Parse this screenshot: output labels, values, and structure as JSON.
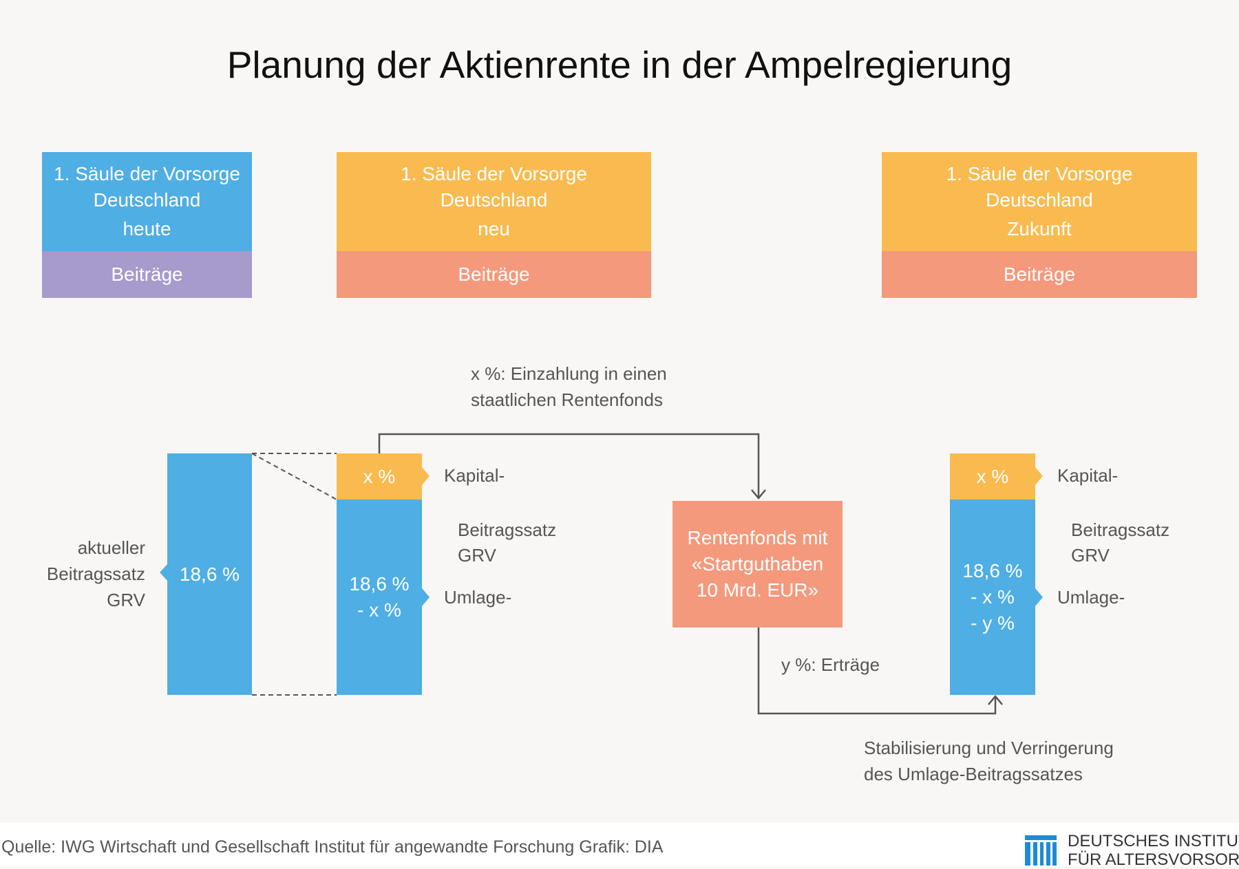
{
  "title": "Planung der Aktienrente in der Ampelregierung",
  "cards": [
    {
      "line1": "1. Säule der Vorsorge",
      "line2": "Deutschland",
      "line3": "heute",
      "bottom": "Beiträge"
    },
    {
      "line1": "1. Säule der Vorsorge",
      "line2": "Deutschland",
      "line3": "neu",
      "bottom": "Beiträge"
    },
    {
      "line1": "1. Säule der Vorsorge",
      "line2": "Deutschland",
      "line3": "Zukunft",
      "bottom": "Beiträge"
    }
  ],
  "left": {
    "label_line1": "aktueller",
    "label_line2": "Beitragssatz",
    "label_line3": "GRV",
    "bar_value": "18,6 %"
  },
  "middle": {
    "top_value": "x %",
    "bottom_line1": "18,6 %",
    "bottom_line2": "- x %",
    "kapital": "Kapital-",
    "beitragssatz": "Beitragssatz",
    "grv": "GRV",
    "umlage": "Umlage-"
  },
  "flow": {
    "top_label_line1": "x %: Einzahlung in einen",
    "top_label_line2": "staatlichen Rentenfonds",
    "fund_line1": "Rentenfonds mit",
    "fund_line2": "«Startguthaben",
    "fund_line3": "10 Mrd. EUR»",
    "returns_label": "y %: Erträge",
    "bottom_label_line1": "Stabilisierung und Verringerung",
    "bottom_label_line2": "des Umlage-Beitragssatzes"
  },
  "right": {
    "top_value": "x %",
    "bottom_line1": "18,6 %",
    "bottom_line2": "- x %",
    "bottom_line3": "- y %",
    "kapital": "Kapital-",
    "beitragssatz": "Beitragssatz",
    "grv": "GRV",
    "umlage": "Umlage-"
  },
  "footer": {
    "source": "Quelle: IWG Wirtschaft und Gesellschaft Institut für angewandte Forschung  Grafik: DIA",
    "logo_line1": "DEUTSCHES INSTITUT",
    "logo_line2": "FÜR ALTERSVORSORGE"
  },
  "colors": {
    "blue": "#4faee3",
    "yellow": "#f9bb4f",
    "purple": "#a69bcb",
    "salmon": "#f4997c",
    "logo_blue": "#1f8bd2"
  }
}
